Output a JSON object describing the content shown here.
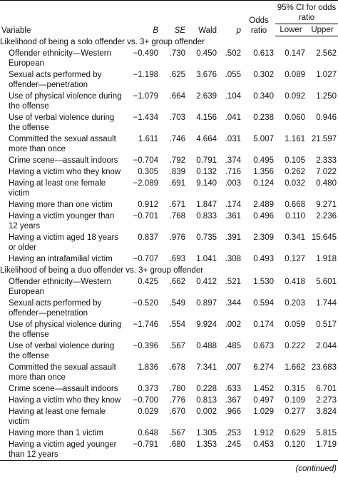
{
  "header": {
    "variable": "Variable",
    "b": "B",
    "se": "SE",
    "wald": "Wald",
    "p": "p",
    "odds_ratio": "Odds ratio",
    "ci": "95% CI for odds ratio",
    "lower": "Lower",
    "upper": "Upper"
  },
  "sections": [
    {
      "title": "Likelihood of being a solo offender vs. 3+ group offender",
      "rows": [
        [
          "Offender ethnicity—Western European",
          "−0.490",
          ".730",
          "0.450",
          ".502",
          "0.613",
          "0.147",
          "2.562"
        ],
        [
          "Sexual acts performed by offender—penetration",
          "−1.198",
          ".625",
          "3.676",
          ".055",
          "0.302",
          "0.089",
          "1.027"
        ],
        [
          "Use of physical violence during the offense",
          "−1.079",
          ".664",
          "2.639",
          ".104",
          "0.340",
          "0.092",
          "1.250"
        ],
        [
          "Use of verbal violence during the offense",
          "−1.434",
          ".703",
          "4.156",
          ".041",
          "0.238",
          "0.060",
          "0.946"
        ],
        [
          "Committed the sexual assault more than once",
          "1.611",
          ".746",
          "4.664",
          ".031",
          "5.007",
          "1.161",
          "21.597"
        ],
        [
          "Crime scene—assault indoors",
          "−0.704",
          ".792",
          "0.791",
          ".374",
          "0.495",
          "0.105",
          "2.333"
        ],
        [
          "Having a victim who they know",
          "0.305",
          ".839",
          "0.132",
          ".716",
          "1.356",
          "0.262",
          "7.022"
        ],
        [
          "Having at least one female victim",
          "−2.089",
          ".691",
          "9.140",
          ".003",
          "0.124",
          "0.032",
          "0.480"
        ],
        [
          "Having more than one victim",
          "0.912",
          ".671",
          "1.847",
          ".174",
          "2.489",
          "0.668",
          "9.271"
        ],
        [
          "Having a victim younger than 12 years",
          "−0.701",
          ".768",
          "0.833",
          ".361",
          "0.496",
          "0.110",
          "2.236"
        ],
        [
          "Having a victim aged 18 years or older",
          "0.837",
          ".976",
          "0.735",
          ".391",
          "2.309",
          "0.341",
          "15.645"
        ],
        [
          "Having an intrafamilial victim",
          "−0.707",
          ".693",
          "1.041",
          ".308",
          "0.493",
          "0.127",
          "1.918"
        ]
      ]
    },
    {
      "title": "Likelihood of being a duo offender vs. 3+ group offender",
      "rows": [
        [
          "Offender ethnicity—Western European",
          "0.425",
          ".662",
          "0.412",
          ".521",
          "1.530",
          "0.418",
          "5.601"
        ],
        [
          "Sexual acts performed by offender—penetration",
          "−0.520",
          ".549",
          "0.897",
          ".344",
          "0.594",
          "0.203",
          "1.744"
        ],
        [
          "Use of physical violence during the offense",
          "−1.746",
          ".554",
          "9.924",
          ".002",
          "0.174",
          "0.059",
          "0.517"
        ],
        [
          "Use of verbal violence during the offense",
          "−0.396",
          ".567",
          "0.488",
          ".485",
          "0.673",
          "0.222",
          "2.044"
        ],
        [
          "Committed the sexual assault more than once",
          "1.836",
          ".678",
          "7.341",
          ".007",
          "6.274",
          "1.662",
          "23.683"
        ],
        [
          "Crime scene—assault indoors",
          "0.373",
          ".780",
          "0.228",
          ".633",
          "1.452",
          "0.315",
          "6.701"
        ],
        [
          "Having a victim who they know",
          "−0.700",
          ".776",
          "0.813",
          ".367",
          "0.497",
          "0.109",
          "2.273"
        ],
        [
          "Having at least one female victim",
          "0.029",
          ".670",
          "0.002",
          ".966",
          "1.029",
          "0.277",
          "3.824"
        ],
        [
          "Having more than 1 victim",
          "0.648",
          ".567",
          "1.305",
          ".253",
          "1.912",
          "0.629",
          "5.815"
        ],
        [
          "Having a victim aged younger than 12 years",
          "−0.791",
          ".680",
          "1.353",
          ".245",
          "0.453",
          "0.120",
          "1.719"
        ]
      ]
    }
  ],
  "footer": "(continued)"
}
